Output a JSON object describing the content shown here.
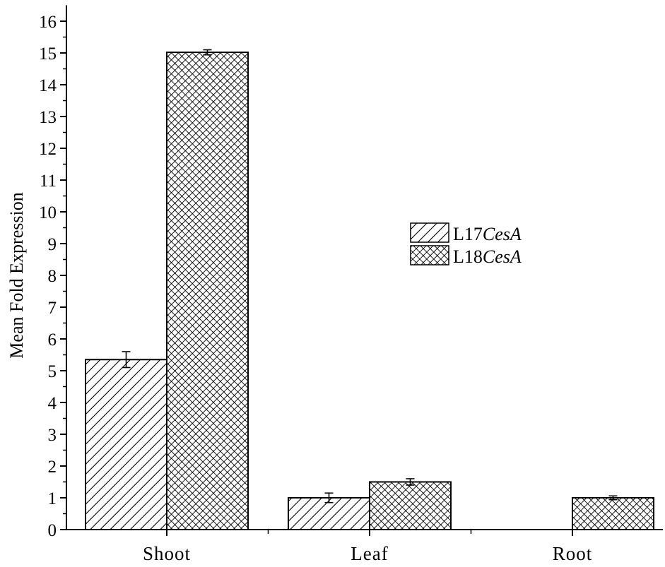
{
  "chart_data": {
    "type": "bar",
    "categories": [
      "Shoot",
      "Leaf",
      "Root"
    ],
    "series": [
      {
        "name": "L17CesA",
        "name_prefix": "L17",
        "name_italic": "CesA",
        "pattern": "diagonal-hatch",
        "values": [
          5.35,
          1.0,
          null
        ],
        "errors": [
          0.25,
          0.15,
          null
        ]
      },
      {
        "name": "L18CesA",
        "name_prefix": "L18",
        "name_italic": "CesA",
        "pattern": "crosshatch",
        "values": [
          15.02,
          1.5,
          1.0
        ],
        "errors": [
          0.08,
          0.1,
          0.06
        ]
      }
    ],
    "title": "",
    "xlabel": "",
    "ylabel": "Mean Fold Expression",
    "ylim": [
      0,
      16.5
    ],
    "yticks": [
      0,
      1,
      2,
      3,
      4,
      5,
      6,
      7,
      8,
      9,
      10,
      11,
      12,
      13,
      14,
      15,
      16
    ],
    "grid": false,
    "legend_position": "center-right",
    "colors": {
      "bar_fill": "#ffffff",
      "ink": "#000000"
    }
  }
}
